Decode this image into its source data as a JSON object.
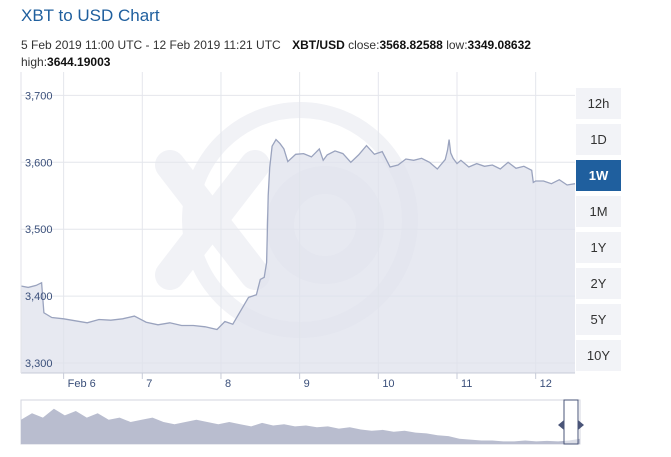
{
  "header": {
    "title": "XBT to USD Chart",
    "period": "5 Feb 2019 11:00 UTC - 12 Feb 2019 11:21 UTC",
    "pair": "XBT/USD",
    "close_label": "close:",
    "close_value": "3568.82588",
    "low_label": "low:",
    "low_value": "3349.08632",
    "high_label": "high:",
    "high_value": "3644.19003"
  },
  "range_buttons": [
    {
      "label": "12h",
      "active": false
    },
    {
      "label": "1D",
      "active": false
    },
    {
      "label": "1W",
      "active": true
    },
    {
      "label": "1M",
      "active": false
    },
    {
      "label": "1Y",
      "active": false
    },
    {
      "label": "2Y",
      "active": false
    },
    {
      "label": "5Y",
      "active": false
    },
    {
      "label": "10Y",
      "active": false
    }
  ],
  "colors": {
    "line": "#9aa3be",
    "fill": "#dfe2ec",
    "grid": "#e4e6ec",
    "axis_label": "#3a4f7a",
    "accent": "#1f5f9e",
    "navigator_fill": "#b9bdcf",
    "watermark": "#f1f2f6"
  },
  "chart_data": {
    "type": "area",
    "ylim": [
      3285,
      3735
    ],
    "xlim": [
      5.4583,
      12.5
    ],
    "yticks": [
      3300,
      3400,
      3500,
      3600,
      3700
    ],
    "ytick_labels": [
      "3,300",
      "3,400",
      "3,500",
      "3,600",
      "3,700"
    ],
    "xticks": [
      6,
      7,
      8,
      9,
      10,
      11,
      12
    ],
    "xtick_labels": [
      "Feb 6",
      "7",
      "8",
      "9",
      "10",
      "11",
      "12"
    ],
    "grid": true,
    "x": [
      5.4583,
      5.55,
      5.65,
      5.72,
      5.75,
      5.85,
      6.0,
      6.15,
      6.3,
      6.45,
      6.6,
      6.75,
      6.9,
      7.05,
      7.2,
      7.35,
      7.5,
      7.65,
      7.8,
      7.95,
      8.05,
      8.15,
      8.3,
      8.35,
      8.4,
      8.45,
      8.5,
      8.55,
      8.58,
      8.6,
      8.62,
      8.65,
      8.7,
      8.75,
      8.8,
      8.85,
      8.95,
      9.05,
      9.15,
      9.25,
      9.3,
      9.35,
      9.45,
      9.55,
      9.65,
      9.75,
      9.85,
      9.95,
      10.05,
      10.15,
      10.25,
      10.35,
      10.45,
      10.55,
      10.65,
      10.75,
      10.85,
      10.88,
      10.9,
      10.92,
      10.95,
      11.0,
      11.05,
      11.15,
      11.25,
      11.35,
      11.45,
      11.55,
      11.65,
      11.75,
      11.85,
      11.95,
      11.97,
      12.0,
      12.1,
      12.2,
      12.3,
      12.4,
      12.5
    ],
    "y": [
      3415,
      3413,
      3416,
      3420,
      3375,
      3368,
      3366,
      3363,
      3360,
      3365,
      3364,
      3366,
      3370,
      3361,
      3357,
      3360,
      3356,
      3356,
      3354,
      3350,
      3362,
      3358,
      3388,
      3398,
      3400,
      3402,
      3425,
      3428,
      3450,
      3550,
      3592,
      3624,
      3634,
      3628,
      3620,
      3601,
      3612,
      3613,
      3608,
      3620,
      3603,
      3611,
      3617,
      3613,
      3600,
      3611,
      3625,
      3612,
      3616,
      3593,
      3596,
      3605,
      3603,
      3606,
      3600,
      3590,
      3604,
      3618,
      3634,
      3614,
      3606,
      3598,
      3603,
      3593,
      3598,
      3594,
      3596,
      3590,
      3600,
      3591,
      3594,
      3588,
      3570,
      3572,
      3572,
      3568,
      3574,
      3566,
      3568
    ]
  },
  "navigator": {
    "y": [
      0.55,
      0.7,
      0.6,
      0.8,
      0.65,
      0.75,
      0.6,
      0.7,
      0.55,
      0.6,
      0.5,
      0.55,
      0.6,
      0.5,
      0.45,
      0.5,
      0.55,
      0.5,
      0.45,
      0.5,
      0.45,
      0.4,
      0.48,
      0.42,
      0.45,
      0.4,
      0.42,
      0.38,
      0.4,
      0.35,
      0.38,
      0.33,
      0.3,
      0.32,
      0.28,
      0.3,
      0.26,
      0.24,
      0.2,
      0.18,
      0.12,
      0.1,
      0.08,
      0.08,
      0.06,
      0.06,
      0.08,
      0.06,
      0.07,
      0.06,
      0.08,
      0.12
    ]
  }
}
